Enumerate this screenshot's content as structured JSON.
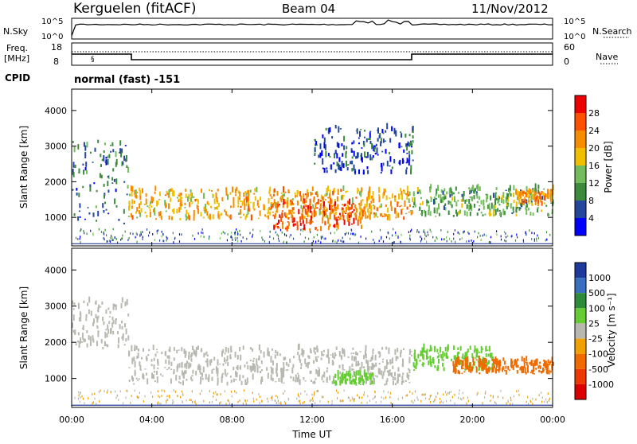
{
  "header": {
    "station": "Kerguelen (fitACF)",
    "beam": "Beam 04",
    "date": "11/Nov/2012"
  },
  "sky_panel": {
    "left_label": "N.Sky",
    "right_label": "N.Search",
    "left_ticks": [
      "10^5",
      "10^0"
    ],
    "right_ticks": [
      "10^5",
      "10^0"
    ]
  },
  "freq_panel": {
    "left_label_1": "Freq.",
    "left_label_2": "[MHz]",
    "right_label": "Nave",
    "left_ticks": [
      "18",
      "8"
    ],
    "right_ticks": [
      "60",
      "0"
    ]
  },
  "cpid": {
    "label": "CPID",
    "value": "normal (fast) -151"
  },
  "x_axis": {
    "label": "Time UT",
    "ticks": [
      "00:00",
      "04:00",
      "08:00",
      "12:00",
      "16:00",
      "20:00",
      "00:00"
    ]
  },
  "colors": {
    "power": [
      "#0000ff",
      "#23479c",
      "#3d8a3d",
      "#72bc5b",
      "#f0c000",
      "#f88c00",
      "#ff5000",
      "#ee0000"
    ],
    "velocity": [
      "#1e3a9c",
      "#3a6fbf",
      "#2e8b3a",
      "#66cc33",
      "#b8b8b0",
      "#f0a000",
      "#f06a00",
      "#ee3a00",
      "#dd0000"
    ],
    "ground": "#b8b8b0"
  },
  "chart_data": [
    {
      "type": "heatmap",
      "name": "power",
      "ylabel": "Slant Range [km]",
      "yticks": [
        "1000",
        "2000",
        "3000",
        "4000"
      ],
      "ylim": [
        200,
        4600
      ],
      "xlim": [
        0,
        24
      ],
      "colorbar": {
        "label": "Power [dB]",
        "ticks": [
          "4",
          "8",
          "12",
          "16",
          "20",
          "24",
          "28"
        ],
        "range": [
          0,
          32
        ]
      },
      "echo_regions": [
        {
          "t0": 0.0,
          "t1": 2.8,
          "r0": 800,
          "r1": 3100,
          "level": 8
        },
        {
          "t0": 2.8,
          "t1": 17.0,
          "r0": 900,
          "r1": 1750,
          "level": 20
        },
        {
          "t0": 10.0,
          "t1": 14.5,
          "r0": 600,
          "r1": 1400,
          "level": 26
        },
        {
          "t0": 12.0,
          "t1": 17.0,
          "r0": 2200,
          "r1": 3500,
          "level": 6
        },
        {
          "t0": 17.0,
          "t1": 24.0,
          "r0": 1000,
          "r1": 1800,
          "level": 12
        },
        {
          "t0": 22.0,
          "t1": 24.0,
          "r0": 1300,
          "r1": 1700,
          "level": 22
        }
      ]
    },
    {
      "type": "heatmap",
      "name": "velocity",
      "ylabel": "Slant Range [km]",
      "yticks": [
        "1000",
        "2000",
        "3000",
        "4000"
      ],
      "ylim": [
        200,
        4600
      ],
      "xlim": [
        0,
        24
      ],
      "colorbar": {
        "label": "Velocity [m s⁻¹]",
        "ticks": [
          "1000",
          "500",
          "100",
          "25",
          "-25",
          "-100",
          "-500",
          "-1000"
        ]
      },
      "echo_regions": [
        {
          "t0": 0.0,
          "t1": 2.8,
          "r0": 1800,
          "r1": 3100,
          "vel": 0
        },
        {
          "t0": 2.8,
          "t1": 17.0,
          "r0": 800,
          "r1": 1800,
          "vel": 0
        },
        {
          "t0": 13.0,
          "t1": 15.0,
          "r0": 800,
          "r1": 1100,
          "vel": 200
        },
        {
          "t0": 17.0,
          "t1": 21.0,
          "r0": 1200,
          "r1": 1800,
          "vel": 150
        },
        {
          "t0": 19.0,
          "t1": 24.0,
          "r0": 1100,
          "r1": 1500,
          "vel": -200
        }
      ]
    }
  ]
}
